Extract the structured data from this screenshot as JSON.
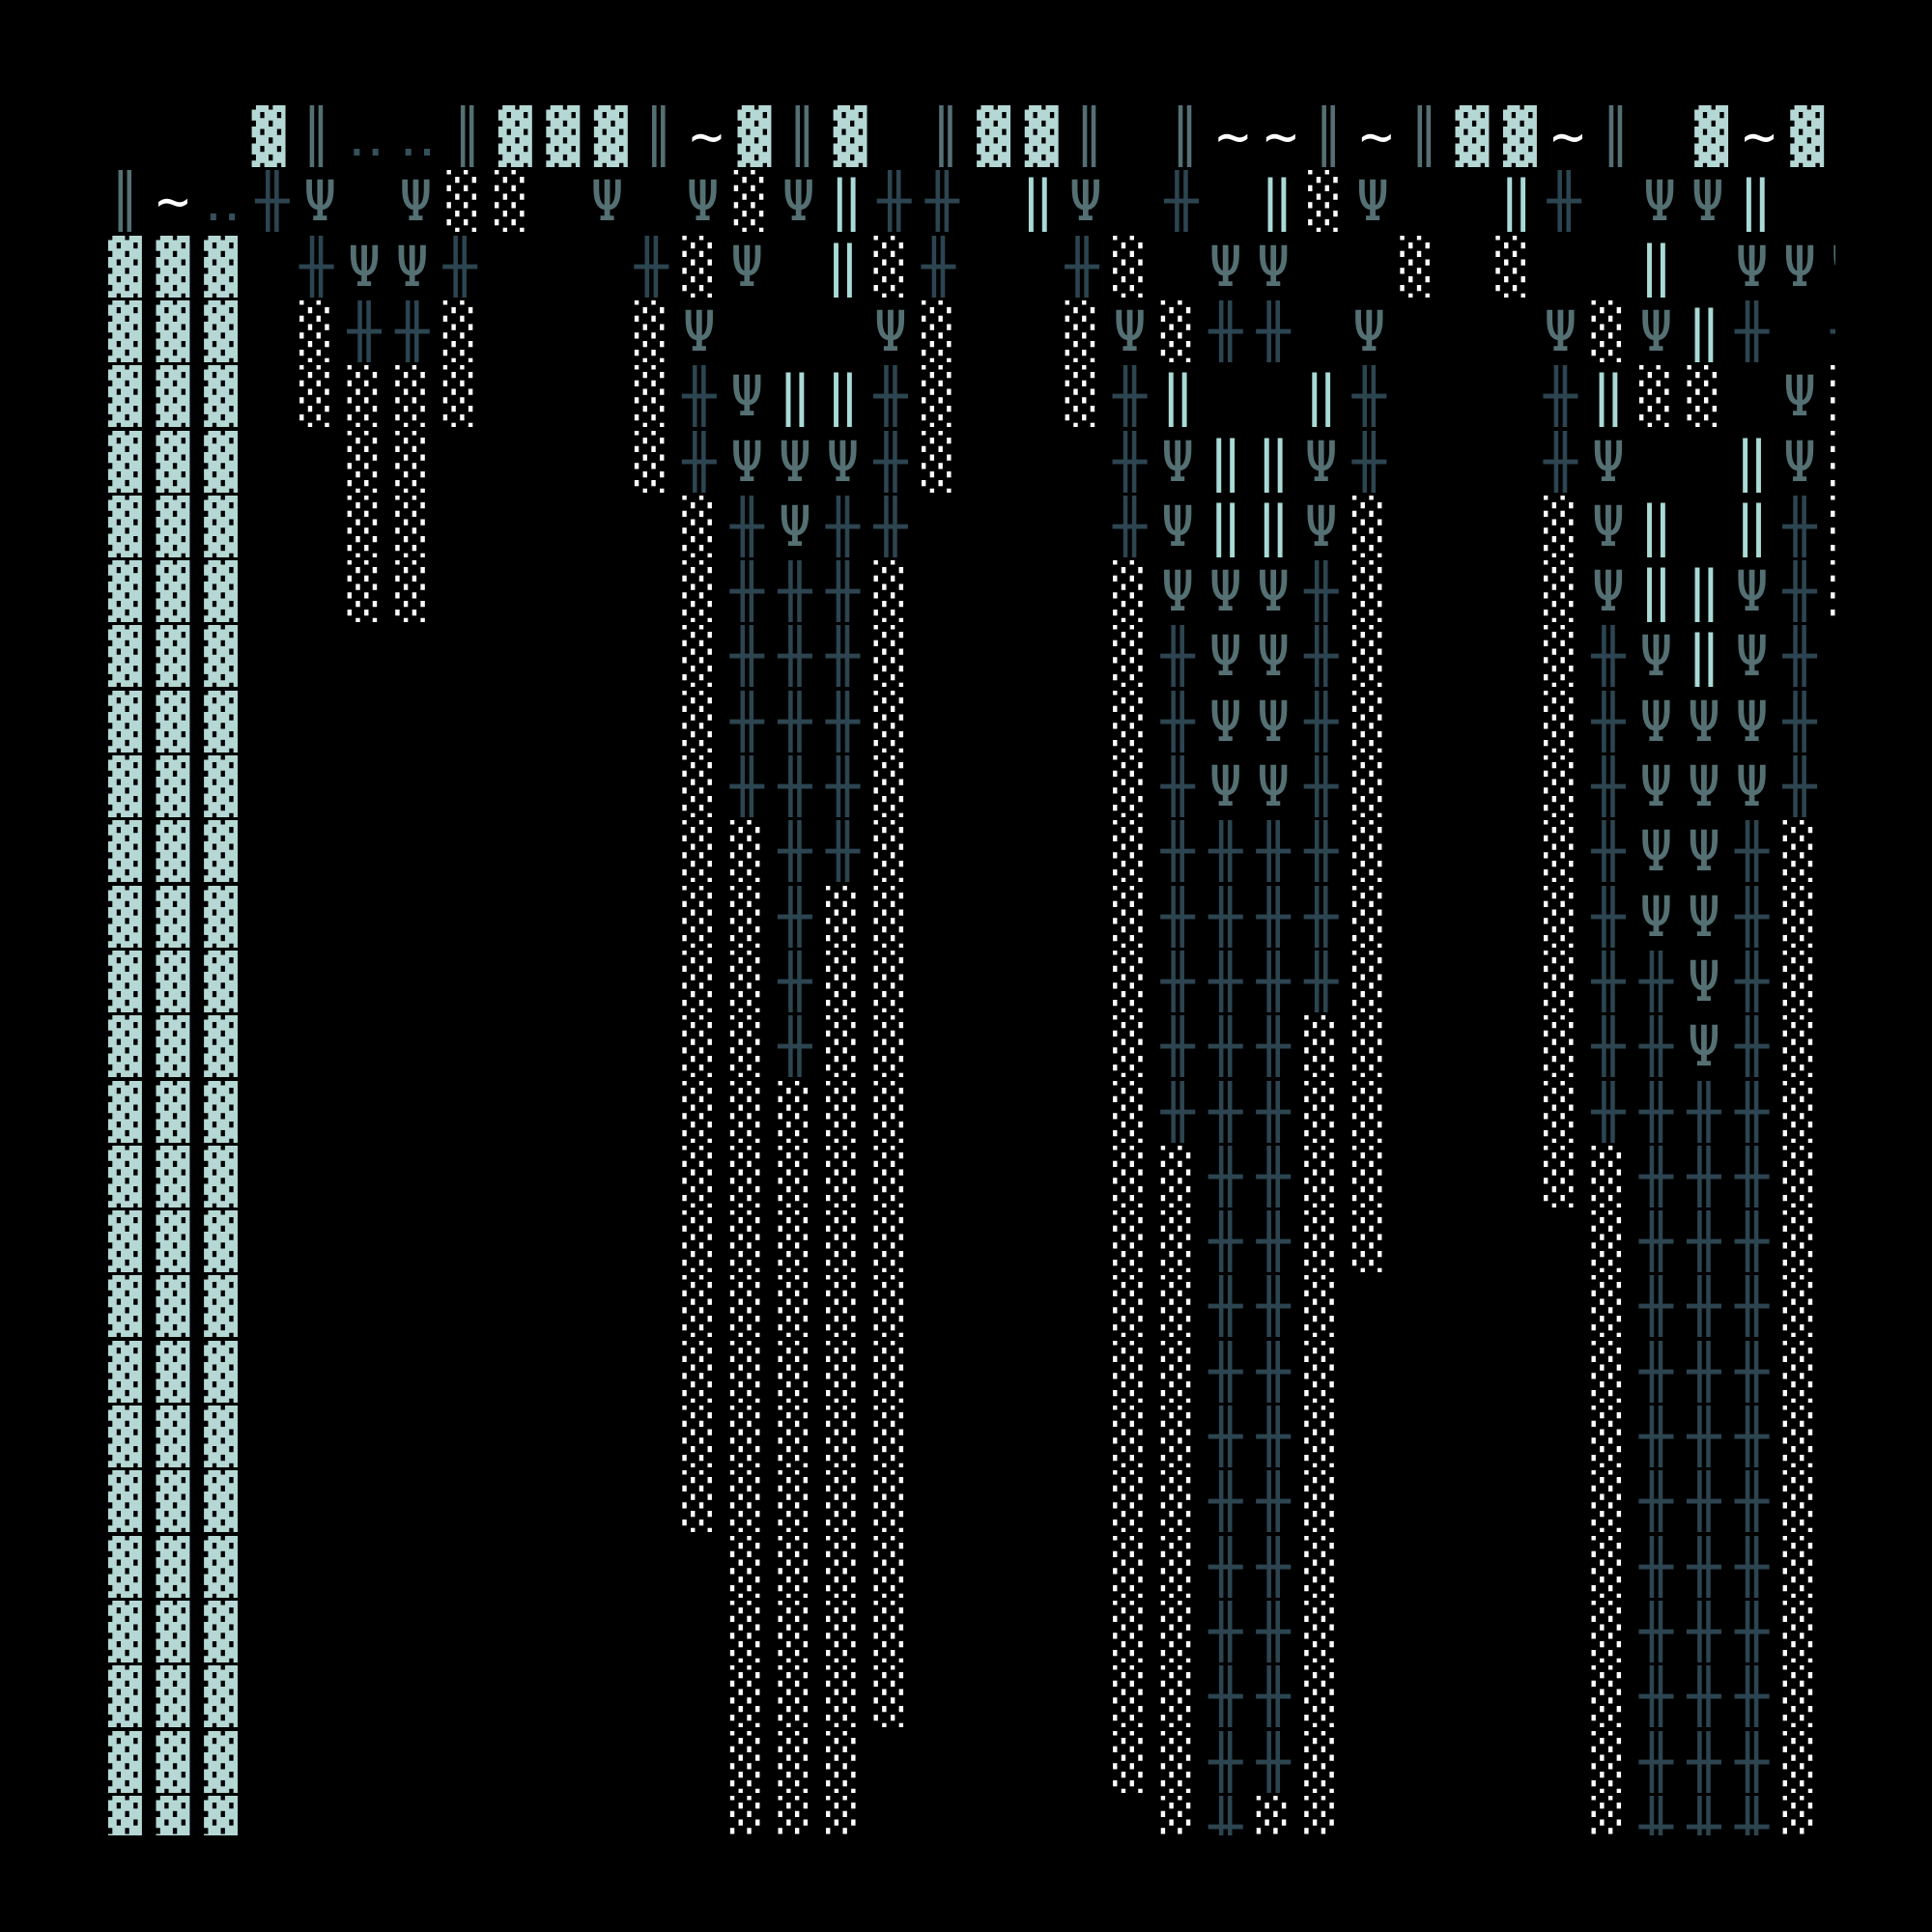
{
  "palette": {
    "background": "#000000",
    "dense_block": "#b5d8d5",
    "dot_shade": "#ffffff",
    "cross": "#2c4551",
    "psi": "#557073",
    "double_bar": "#557073",
    "teal_bars": "#a9dad6",
    "tilde": "#ffffff",
    "dots": "#35505a"
  },
  "art": {
    "rows": [
      "                       ‥‥       ‥‥‥  ",
      "   ▓║‥‥║▓▓▓║~▓║▓ ║▓▓║ ║~~║~║▓▓~║ ▓~▓.",
      "║~‥╫Ψ Ψ░░ Ψ Ψ░Ψ‖╫╫ ‖Ψ ╫ ‖░Ψ  ‖╫ ΨΨ‖ Ψ",
      "▓▓▓ ╫ΨΨ╫   ╫░Ψ ‖░╫  ╫░ ΨΨ  ░ ░  ‖ ΨΨΨ",
      "▓▓▓ ░╫╫░   ░Ψ   Ψ░  ░Ψ░╫╫ Ψ   Ψ░Ψ‖╫ ╫",
      "▓▓▓ ░░░░   ░╫Ψ‖‖╫░  ░╫‖  ‖╫   ╫‖░░ Ψ░",
      "▓▓▓  ░░    ░╫ΨΨΨ╫░   ╫Ψ‖‖Ψ╫   ╫Ψ  ‖Ψ░",
      "▓▓▓  ░░     ░╫Ψ╫╫    ╫Ψ‖‖Ψ░   ░Ψ‖ ‖╫░",
      "▓▓▓  ░░     ░╫╫╫░    ░ΨΨΨ╫░   ░Ψ‖‖Ψ╫░",
      "▓▓▓         ░╫╫╫░    ░╫ΨΨ╫░   ░╫Ψ‖Ψ╫ ",
      "▓▓▓         ░╫╫╫░    ░╫ΨΨ╫░   ░╫ΨΨΨ╫ ",
      "▓▓▓         ░╫╫╫░    ░╫ΨΨ╫░   ░╫ΨΨΨ╫ ",
      "▓▓▓         ░░╫╫░    ░╫╫╫╫░   ░╫ΨΨ╫░ ",
      "▓▓▓         ░░╫░░    ░╫╫╫╫░   ░╫ΨΨ╫░ ",
      "▓▓▓         ░░╫░░    ░╫╫╫╫░   ░╫╫Ψ╫░ ",
      "▓▓▓         ░░╫░░    ░╫╫╫░░   ░╫╫Ψ╫░ ",
      "▓▓▓         ░░░░░    ░╫╫╫░░   ░╫╫╫╫░ ",
      "▓▓▓         ░░░░░    ░░╫╫░░   ░░╫╫╫░ ",
      "▓▓▓         ░░░░░    ░░╫╫░░    ░╫╫╫░ ",
      "▓▓▓         ░░░░░    ░░╫╫░     ░╫╫╫░ ",
      "▓▓▓         ░░░░░    ░░╫╫░     ░╫╫╫░ ",
      "▓▓▓         ░░░░░    ░░╫╫░     ░╫╫╫░ ",
      "▓▓▓         ░░░░░    ░░╫╫░     ░╫╫╫░ ",
      "▓▓▓          ░░░░    ░░╫╫░     ░╫╫╫░ ",
      "▓▓▓          ░░░░    ░░╫╫░     ░╫╫╫░ ",
      "▓▓▓          ░░░░    ░░╫╫░     ░╫╫╫░ ",
      "▓▓▓          ░░░     ░░╫╫░     ░╫╫╫░ ",
      "▓▓▓          ░░░      ░╫░░     ░╫╫╫░ "
    ]
  }
}
